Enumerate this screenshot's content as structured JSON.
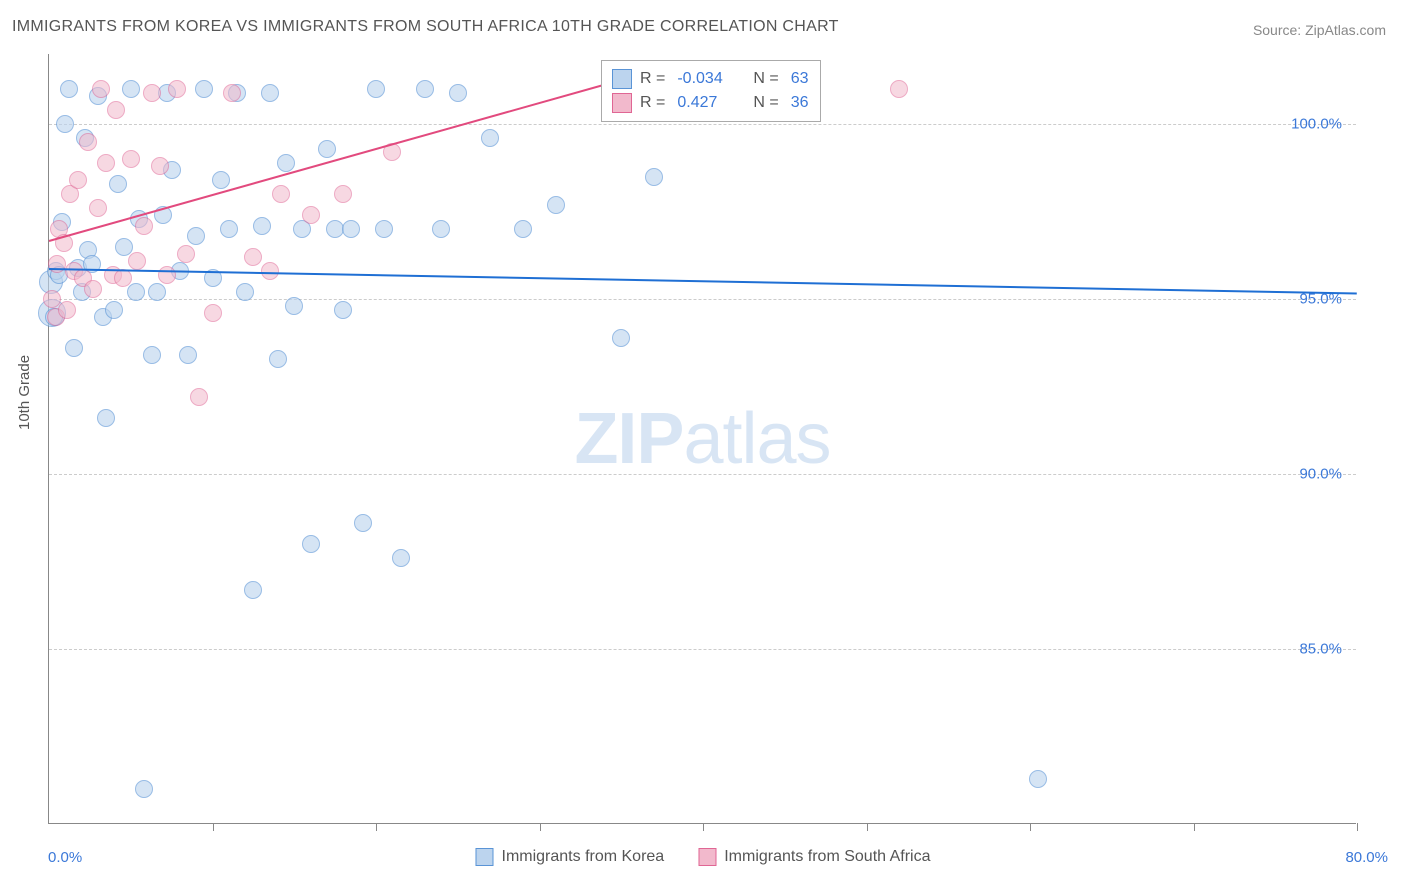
{
  "title": "IMMIGRANTS FROM KOREA VS IMMIGRANTS FROM SOUTH AFRICA 10TH GRADE CORRELATION CHART",
  "source": "Source: ZipAtlas.com",
  "yaxis_label": "10th Grade",
  "watermark_bold": "ZIP",
  "watermark_light": "atlas",
  "chart": {
    "type": "scatter",
    "background_color": "#ffffff",
    "grid_color": "#cccccc",
    "axis_color": "#888888",
    "tick_color": "#3b78d8",
    "xmin": 0.0,
    "xmax": 80.0,
    "ymin": 80.0,
    "ymax": 102.0,
    "xtick_positions": [
      0,
      10,
      20,
      30,
      40,
      50,
      60,
      70,
      80
    ],
    "xtick_start_label": "0.0%",
    "xtick_end_label": "80.0%",
    "ytick_positions": [
      85.0,
      90.0,
      95.0,
      100.0
    ],
    "ytick_labels": [
      "85.0%",
      "90.0%",
      "95.0%",
      "100.0%"
    ],
    "point_radius": 9,
    "series": [
      {
        "name": "Immigrants from Korea",
        "fill": "#bcd4ee",
        "stroke": "#5a94d6",
        "fill_opacity": 0.62,
        "R": "-0.034",
        "N": "63",
        "trend": {
          "color": "#1f6fd4",
          "x1": 0.0,
          "y1": 95.9,
          "x2": 80.0,
          "y2": 95.2
        },
        "points": [
          {
            "x": 0.1,
            "y": 95.5,
            "r": 12
          },
          {
            "x": 0.2,
            "y": 94.6,
            "r": 14
          },
          {
            "x": 0.3,
            "y": 94.5
          },
          {
            "x": 0.4,
            "y": 95.8
          },
          {
            "x": 0.6,
            "y": 95.7
          },
          {
            "x": 0.8,
            "y": 97.2
          },
          {
            "x": 1.0,
            "y": 100.0
          },
          {
            "x": 1.2,
            "y": 101.0
          },
          {
            "x": 1.5,
            "y": 93.6
          },
          {
            "x": 1.8,
            "y": 95.9
          },
          {
            "x": 2.0,
            "y": 95.2
          },
          {
            "x": 2.2,
            "y": 99.6
          },
          {
            "x": 2.4,
            "y": 96.4
          },
          {
            "x": 2.6,
            "y": 96.0
          },
          {
            "x": 3.0,
            "y": 100.8
          },
          {
            "x": 3.3,
            "y": 94.5
          },
          {
            "x": 3.5,
            "y": 91.6
          },
          {
            "x": 4.0,
            "y": 94.7
          },
          {
            "x": 4.2,
            "y": 98.3
          },
          {
            "x": 4.6,
            "y": 96.5
          },
          {
            "x": 5.0,
            "y": 101.0
          },
          {
            "x": 5.3,
            "y": 95.2
          },
          {
            "x": 5.5,
            "y": 97.3
          },
          {
            "x": 5.8,
            "y": 81.0
          },
          {
            "x": 6.3,
            "y": 93.4
          },
          {
            "x": 6.6,
            "y": 95.2
          },
          {
            "x": 7.0,
            "y": 97.4
          },
          {
            "x": 7.2,
            "y": 100.9
          },
          {
            "x": 7.5,
            "y": 98.7
          },
          {
            "x": 8.0,
            "y": 95.8
          },
          {
            "x": 8.5,
            "y": 93.4
          },
          {
            "x": 9.0,
            "y": 96.8
          },
          {
            "x": 9.5,
            "y": 101.0
          },
          {
            "x": 10.0,
            "y": 95.6
          },
          {
            "x": 10.5,
            "y": 98.4
          },
          {
            "x": 11.0,
            "y": 97.0
          },
          {
            "x": 11.5,
            "y": 100.9
          },
          {
            "x": 12.0,
            "y": 95.2
          },
          {
            "x": 12.5,
            "y": 86.7
          },
          {
            "x": 13.0,
            "y": 97.1
          },
          {
            "x": 13.5,
            "y": 100.9
          },
          {
            "x": 14.0,
            "y": 93.3
          },
          {
            "x": 14.5,
            "y": 98.9
          },
          {
            "x": 15.0,
            "y": 94.8
          },
          {
            "x": 15.5,
            "y": 97.0
          },
          {
            "x": 16.0,
            "y": 88.0
          },
          {
            "x": 17.0,
            "y": 99.3
          },
          {
            "x": 17.5,
            "y": 97.0
          },
          {
            "x": 18.0,
            "y": 94.7
          },
          {
            "x": 18.5,
            "y": 97.0
          },
          {
            "x": 19.2,
            "y": 88.6
          },
          {
            "x": 20.0,
            "y": 101.0
          },
          {
            "x": 20.5,
            "y": 97.0
          },
          {
            "x": 21.5,
            "y": 87.6
          },
          {
            "x": 23.0,
            "y": 101.0
          },
          {
            "x": 24.0,
            "y": 97.0
          },
          {
            "x": 25.0,
            "y": 100.9
          },
          {
            "x": 27.0,
            "y": 99.6
          },
          {
            "x": 29.0,
            "y": 97.0
          },
          {
            "x": 31.0,
            "y": 97.7
          },
          {
            "x": 35.0,
            "y": 93.9
          },
          {
            "x": 37.0,
            "y": 98.5
          },
          {
            "x": 60.5,
            "y": 81.3
          }
        ]
      },
      {
        "name": "Immigrants from South Africa",
        "fill": "#f2b9cc",
        "stroke": "#e06694",
        "fill_opacity": 0.55,
        "R": "0.427",
        "N": "36",
        "trend": {
          "color": "#e24a7e",
          "x1": 0.0,
          "y1": 96.7,
          "x2": 35.0,
          "y2": 101.3
        },
        "points": [
          {
            "x": 0.2,
            "y": 95.0
          },
          {
            "x": 0.4,
            "y": 94.5
          },
          {
            "x": 0.5,
            "y": 96.0
          },
          {
            "x": 0.6,
            "y": 97.0
          },
          {
            "x": 0.9,
            "y": 96.6
          },
          {
            "x": 1.1,
            "y": 94.7
          },
          {
            "x": 1.3,
            "y": 98.0
          },
          {
            "x": 1.5,
            "y": 95.8
          },
          {
            "x": 1.8,
            "y": 98.4
          },
          {
            "x": 2.1,
            "y": 95.6
          },
          {
            "x": 2.4,
            "y": 99.5
          },
          {
            "x": 2.7,
            "y": 95.3
          },
          {
            "x": 3.0,
            "y": 97.6
          },
          {
            "x": 3.2,
            "y": 101.0
          },
          {
            "x": 3.5,
            "y": 98.9
          },
          {
            "x": 3.9,
            "y": 95.7
          },
          {
            "x": 4.1,
            "y": 100.4
          },
          {
            "x": 4.5,
            "y": 95.6
          },
          {
            "x": 5.0,
            "y": 99.0
          },
          {
            "x": 5.4,
            "y": 96.1
          },
          {
            "x": 5.8,
            "y": 97.1
          },
          {
            "x": 6.3,
            "y": 100.9
          },
          {
            "x": 6.8,
            "y": 98.8
          },
          {
            "x": 7.2,
            "y": 95.7
          },
          {
            "x": 7.8,
            "y": 101.0
          },
          {
            "x": 8.4,
            "y": 96.3
          },
          {
            "x": 9.2,
            "y": 92.2
          },
          {
            "x": 10.0,
            "y": 94.6
          },
          {
            "x": 11.2,
            "y": 100.9
          },
          {
            "x": 12.5,
            "y": 96.2
          },
          {
            "x": 13.5,
            "y": 95.8
          },
          {
            "x": 14.2,
            "y": 98.0
          },
          {
            "x": 16.0,
            "y": 97.4
          },
          {
            "x": 18.0,
            "y": 98.0
          },
          {
            "x": 21.0,
            "y": 99.2
          },
          {
            "x": 52.0,
            "y": 101.0
          }
        ]
      }
    ]
  },
  "legend": {
    "r_label": "R =",
    "n_label": "N ="
  },
  "bottom_legend": [
    {
      "label": "Immigrants from Korea",
      "fill": "#bcd4ee",
      "stroke": "#5a94d6"
    },
    {
      "label": "Immigrants from South Africa",
      "fill": "#f2b9cc",
      "stroke": "#e06694"
    }
  ],
  "colors": {
    "title": "#555555",
    "source": "#888888",
    "legend_value": "#3b78d8"
  }
}
